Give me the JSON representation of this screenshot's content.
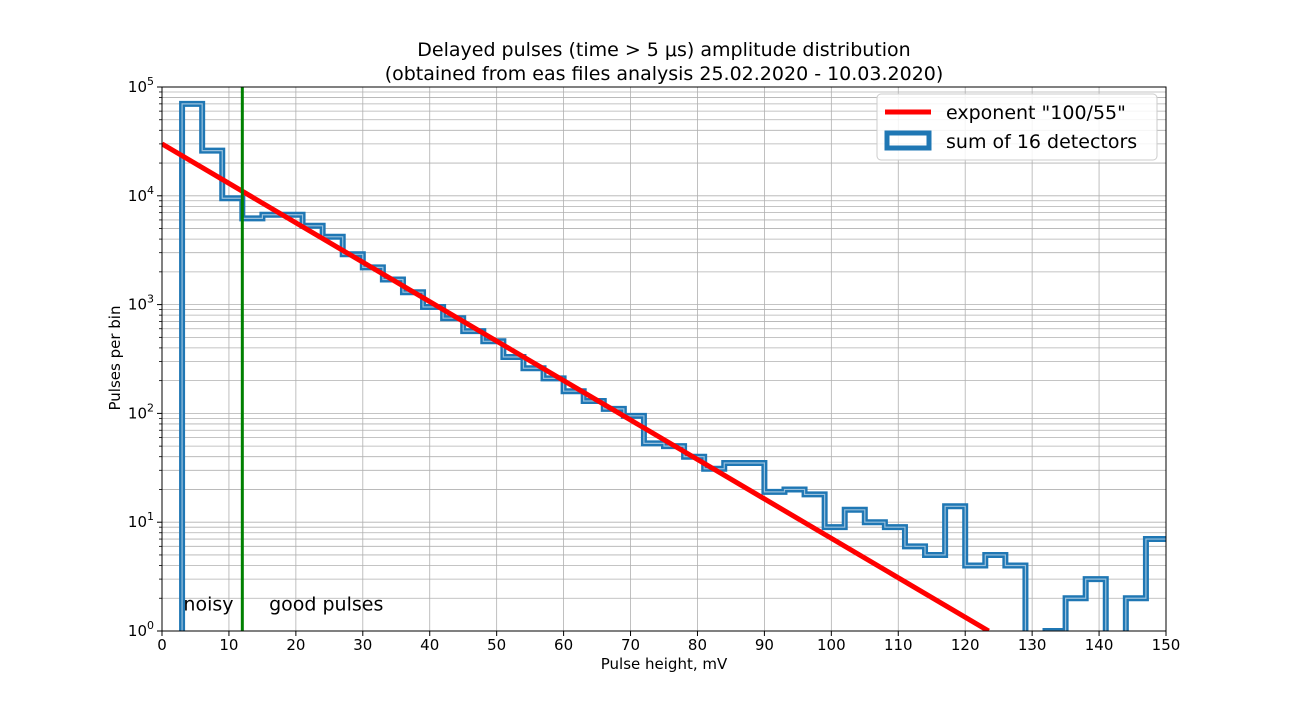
{
  "chart_data": {
    "type": "line",
    "title_line1": "Delayed pulses (time > 5 μs) amplitude distribution",
    "title_line2": "(obtained from eas files analysis 25.02.2020 - 10.03.2020)",
    "xlabel": "Pulse height, mV",
    "ylabel": "Pulses per bin",
    "xlim": [
      0,
      150
    ],
    "ylim": [
      1,
      100000
    ],
    "yscale": "log",
    "grid": true,
    "grid_minor": true,
    "legend_position": "top-right",
    "x_ticks": [
      0,
      10,
      20,
      30,
      40,
      50,
      60,
      70,
      80,
      90,
      100,
      110,
      120,
      130,
      140,
      150
    ],
    "y_ticks": [
      {
        "base": "10",
        "exp": "0",
        "value": 1
      },
      {
        "base": "10",
        "exp": "1",
        "value": 10
      },
      {
        "base": "10",
        "exp": "2",
        "value": 100
      },
      {
        "base": "10",
        "exp": "3",
        "value": 1000
      },
      {
        "base": "10",
        "exp": "4",
        "value": 10000
      },
      {
        "base": "10",
        "exp": "5",
        "value": 100000
      }
    ],
    "series": [
      {
        "name": "exponent \"100/55\"",
        "kind": "line",
        "color": "#ff0000",
        "x": [
          0,
          123.5
        ],
        "y": [
          30000,
          1
        ]
      },
      {
        "name": "sum of 16 detectors",
        "kind": "step-histogram",
        "color": "#1f77b4",
        "bin_width": 3,
        "bin_edges": [
          0,
          3,
          6,
          9,
          12,
          15,
          18,
          21,
          24,
          27,
          30,
          33,
          36,
          39,
          42,
          45,
          48,
          51,
          54,
          57,
          60,
          63,
          66,
          69,
          72,
          75,
          78,
          81,
          84,
          87,
          90,
          93,
          96,
          99,
          102,
          105,
          108,
          111,
          114,
          117,
          120,
          123,
          126,
          129,
          132,
          135,
          138,
          141,
          144,
          147,
          150
        ],
        "values": [
          0,
          70000,
          26000,
          9500,
          6200,
          6700,
          6700,
          5300,
          4200,
          2900,
          2200,
          1700,
          1300,
          950,
          750,
          570,
          460,
          330,
          260,
          210,
          160,
          130,
          110,
          95,
          53,
          50,
          40,
          31,
          35,
          35,
          19,
          20,
          18,
          9,
          13,
          10,
          9,
          6,
          5,
          14,
          4,
          5,
          4,
          0,
          1,
          2,
          3,
          0,
          2,
          7
        ]
      }
    ],
    "vertical_marker": {
      "x": 12,
      "color": "#008000"
    },
    "annotations": [
      {
        "text": "noisy",
        "x": 3.2,
        "y": 1.55
      },
      {
        "text": "good pulses",
        "x": 16,
        "y": 1.55
      }
    ]
  }
}
